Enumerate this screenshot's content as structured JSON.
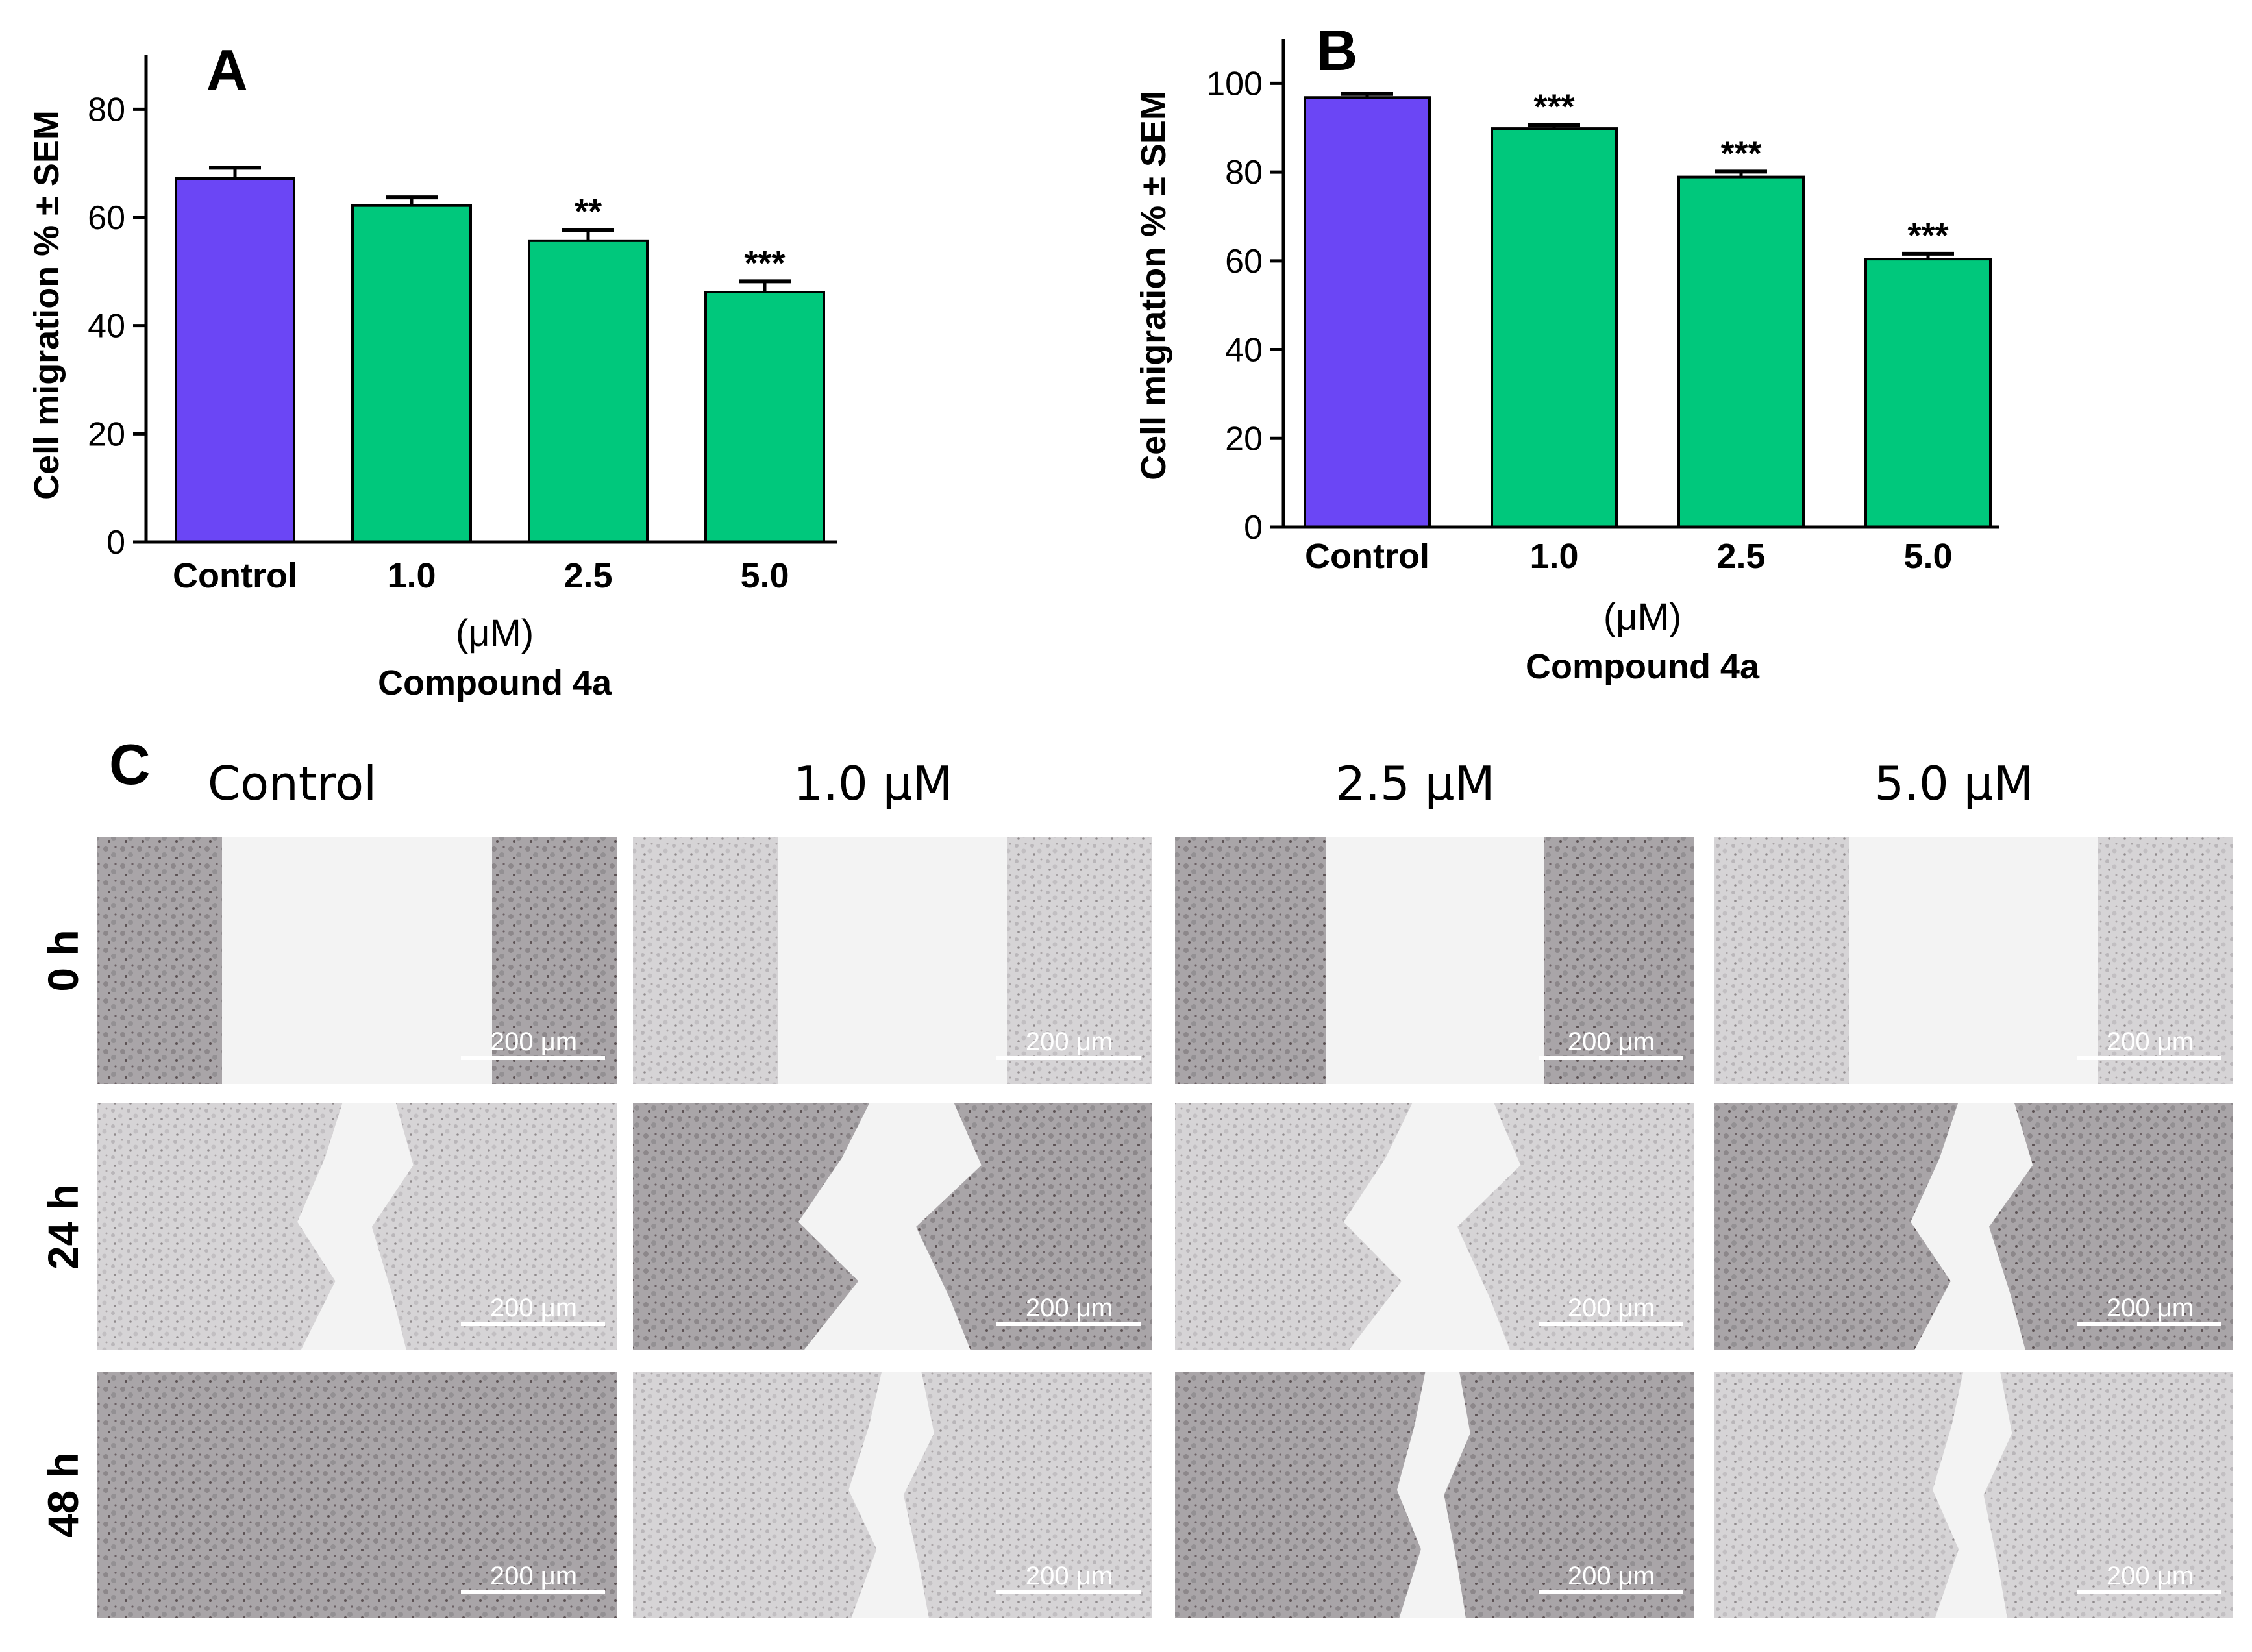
{
  "colors": {
    "control": "#6b46f5",
    "treatment": "#00c87c",
    "axis": "#000000",
    "cell_light": "#dcdcdc",
    "cell_dark": "#9d9a9d",
    "gap": "#f3f3f3",
    "scale_bar": "#ffffff"
  },
  "chart_data": [
    {
      "panel": "A",
      "type": "bar",
      "ylabel": "Cell migration % ± SEM",
      "ylim": [
        0,
        90
      ],
      "yticks": [
        0,
        20,
        40,
        60,
        80
      ],
      "xlabel_unit": "(μM)",
      "xlabel": "Compound 4a",
      "categories": [
        "Control",
        "1.0",
        "2.5",
        "5.0"
      ],
      "values": [
        67.2,
        62.2,
        55.7,
        46.2
      ],
      "errors": [
        2.0,
        1.5,
        2.0,
        2.0
      ],
      "significance": [
        "",
        "",
        "**",
        "***"
      ]
    },
    {
      "panel": "B",
      "type": "bar",
      "ylabel": "Cell migration % ± SEM",
      "ylim": [
        0,
        110
      ],
      "yticks": [
        0,
        20,
        40,
        60,
        80,
        100
      ],
      "xlabel_unit": "(μM)",
      "xlabel": "Compound 4a",
      "categories": [
        "Control",
        "1.0",
        "2.5",
        "5.0"
      ],
      "values": [
        96.8,
        89.8,
        78.9,
        60.4
      ],
      "errors": [
        0.8,
        0.8,
        1.2,
        1.2
      ],
      "significance": [
        "",
        "***",
        "***",
        "***"
      ]
    }
  ],
  "panel_c": {
    "label": "C",
    "columns": [
      "Control",
      "1.0 μM",
      "2.5 μM",
      "5.0 μM"
    ],
    "rows": [
      "0 h",
      "24 h",
      "48 h"
    ],
    "scale_bar_label": "200 μm",
    "gap_fraction": [
      [
        0.52,
        0.44,
        0.42,
        0.48
      ],
      [
        0.19,
        0.3,
        0.29,
        0.2
      ],
      [
        0.0,
        0.14,
        0.12,
        0.13
      ]
    ]
  }
}
